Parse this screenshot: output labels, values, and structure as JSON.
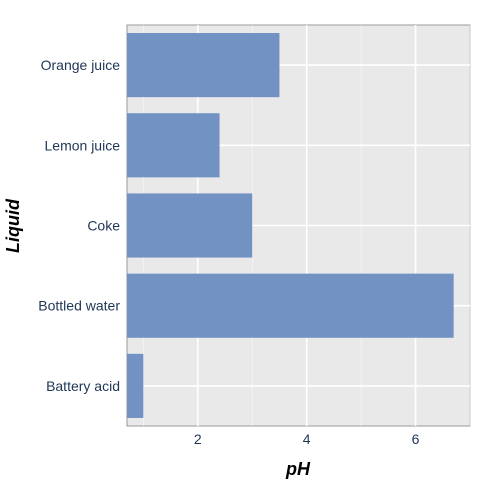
{
  "chart_data": {
    "type": "bar",
    "orientation": "horizontal",
    "categories": [
      "Orange juice",
      "Lemon juice",
      "Coke",
      "Bottled water",
      "Battery acid"
    ],
    "values": [
      3.5,
      2.4,
      3.0,
      6.7,
      1.0
    ],
    "xlabel": "pH",
    "ylabel": "Liquid",
    "xlim": [
      0.7,
      7.0
    ],
    "xticks": [
      2,
      4,
      6
    ],
    "grid": true,
    "legend": "none",
    "colors": {
      "bar": "#7392c4",
      "panel": "#e9e9e9",
      "grid": "#ffffff",
      "tick_text": "#1f3556",
      "axis_title": "#000000"
    }
  }
}
